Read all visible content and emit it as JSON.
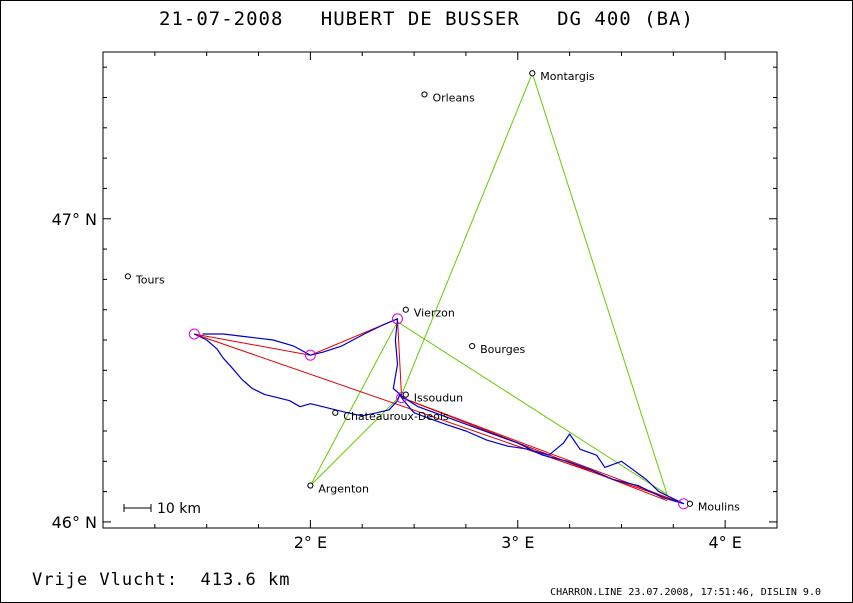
{
  "title": "21-07-2008   HUBERT DE BUSSER   DG 400 (BA)",
  "footer": {
    "distance_label": "Vrije Vlucht:",
    "distance_value": "413.6 km",
    "info": "CHARRON.LINE 23.07.2008, 17:51:46, DISLIN 9.0"
  },
  "scale_bar_label": "10 km",
  "map": {
    "lon_range": [
      1.0,
      4.25
    ],
    "lat_range": [
      45.98,
      47.55
    ],
    "x_ticks": [
      {
        "lon": 2,
        "label": "2° E"
      },
      {
        "lon": 3,
        "label": "3° E"
      },
      {
        "lon": 4,
        "label": "4° E"
      }
    ],
    "y_ticks": [
      {
        "lat": 47,
        "label": "47° N"
      },
      {
        "lat": 46,
        "label": "46° N"
      }
    ],
    "cities": [
      {
        "name": "Montargis",
        "lon": 3.07,
        "lat": 47.48
      },
      {
        "name": "Orleans",
        "lon": 2.55,
        "lat": 47.41
      },
      {
        "name": "Tours",
        "lon": 1.12,
        "lat": 46.81
      },
      {
        "name": "Vierzon",
        "lon": 2.46,
        "lat": 46.7
      },
      {
        "name": "Bourges",
        "lon": 2.78,
        "lat": 46.58
      },
      {
        "name": "Issoudun",
        "lon": 2.46,
        "lat": 46.42
      },
      {
        "name": "Chateauroux-Deols",
        "lon": 2.12,
        "lat": 46.36
      },
      {
        "name": "Argenton",
        "lon": 2.0,
        "lat": 46.12
      },
      {
        "name": "Moulins",
        "lon": 3.83,
        "lat": 46.06
      }
    ],
    "turnpoints": [
      {
        "lon": 1.44,
        "lat": 46.62
      },
      {
        "lon": 2.0,
        "lat": 46.55
      },
      {
        "lon": 2.42,
        "lat": 46.67
      },
      {
        "lon": 2.44,
        "lat": 46.41
      },
      {
        "lon": 3.8,
        "lat": 46.06
      }
    ],
    "triangle": [
      {
        "lon": 3.07,
        "lat": 47.48
      },
      {
        "lon": 3.72,
        "lat": 46.09
      },
      {
        "lon": 2.42,
        "lat": 46.66
      },
      {
        "lon": 2.0,
        "lat": 46.12
      },
      {
        "lon": 2.44,
        "lat": 46.42
      }
    ],
    "task_route": [
      {
        "lon": 1.44,
        "lat": 46.62
      },
      {
        "lon": 2.0,
        "lat": 46.55
      },
      {
        "lon": 2.42,
        "lat": 46.67
      },
      {
        "lon": 2.44,
        "lat": 46.41
      },
      {
        "lon": 3.8,
        "lat": 46.06
      },
      {
        "lon": 1.44,
        "lat": 46.62
      }
    ],
    "task_route_2": [
      {
        "lon": 2.44,
        "lat": 46.41
      },
      {
        "lon": 3.72,
        "lat": 46.07
      }
    ],
    "flight_track": [
      {
        "lon": 1.44,
        "lat": 46.62
      },
      {
        "lon": 1.5,
        "lat": 46.6
      },
      {
        "lon": 1.55,
        "lat": 46.57
      },
      {
        "lon": 1.58,
        "lat": 46.54
      },
      {
        "lon": 1.62,
        "lat": 46.51
      },
      {
        "lon": 1.67,
        "lat": 46.47
      },
      {
        "lon": 1.72,
        "lat": 46.44
      },
      {
        "lon": 1.78,
        "lat": 46.42
      },
      {
        "lon": 1.84,
        "lat": 46.41
      },
      {
        "lon": 1.9,
        "lat": 46.4
      },
      {
        "lon": 1.95,
        "lat": 46.38
      },
      {
        "lon": 2.0,
        "lat": 46.39
      },
      {
        "lon": 2.06,
        "lat": 46.38
      },
      {
        "lon": 2.12,
        "lat": 46.37
      },
      {
        "lon": 2.18,
        "lat": 46.36
      },
      {
        "lon": 2.25,
        "lat": 46.35
      },
      {
        "lon": 2.32,
        "lat": 46.36
      },
      {
        "lon": 2.38,
        "lat": 46.37
      },
      {
        "lon": 2.42,
        "lat": 46.4
      },
      {
        "lon": 2.43,
        "lat": 46.42
      },
      {
        "lon": 2.45,
        "lat": 46.4
      },
      {
        "lon": 2.5,
        "lat": 46.36
      },
      {
        "lon": 2.58,
        "lat": 46.34
      },
      {
        "lon": 2.66,
        "lat": 46.32
      },
      {
        "lon": 2.75,
        "lat": 46.3
      },
      {
        "lon": 2.85,
        "lat": 46.27
      },
      {
        "lon": 2.95,
        "lat": 46.25
      },
      {
        "lon": 3.05,
        "lat": 46.24
      },
      {
        "lon": 3.15,
        "lat": 46.22
      },
      {
        "lon": 3.22,
        "lat": 46.26
      },
      {
        "lon": 3.25,
        "lat": 46.29
      },
      {
        "lon": 3.3,
        "lat": 46.24
      },
      {
        "lon": 3.38,
        "lat": 46.22
      },
      {
        "lon": 3.42,
        "lat": 46.18
      },
      {
        "lon": 3.5,
        "lat": 46.2
      },
      {
        "lon": 3.56,
        "lat": 46.17
      },
      {
        "lon": 3.62,
        "lat": 46.14
      },
      {
        "lon": 3.68,
        "lat": 46.1
      },
      {
        "lon": 3.74,
        "lat": 46.08
      },
      {
        "lon": 3.8,
        "lat": 46.06
      },
      {
        "lon": 3.7,
        "lat": 46.08
      },
      {
        "lon": 3.58,
        "lat": 46.12
      },
      {
        "lon": 3.46,
        "lat": 46.14
      },
      {
        "lon": 3.36,
        "lat": 46.17
      },
      {
        "lon": 3.24,
        "lat": 46.2
      },
      {
        "lon": 3.12,
        "lat": 46.22
      },
      {
        "lon": 3.0,
        "lat": 46.26
      },
      {
        "lon": 2.88,
        "lat": 46.29
      },
      {
        "lon": 2.76,
        "lat": 46.32
      },
      {
        "lon": 2.64,
        "lat": 46.35
      },
      {
        "lon": 2.52,
        "lat": 46.38
      },
      {
        "lon": 2.45,
        "lat": 46.41
      },
      {
        "lon": 2.4,
        "lat": 46.44
      },
      {
        "lon": 2.42,
        "lat": 46.52
      },
      {
        "lon": 2.41,
        "lat": 46.6
      },
      {
        "lon": 2.42,
        "lat": 46.67
      },
      {
        "lon": 2.35,
        "lat": 46.65
      },
      {
        "lon": 2.26,
        "lat": 46.62
      },
      {
        "lon": 2.15,
        "lat": 46.58
      },
      {
        "lon": 2.06,
        "lat": 46.56
      },
      {
        "lon": 2.0,
        "lat": 46.55
      },
      {
        "lon": 1.92,
        "lat": 46.58
      },
      {
        "lon": 1.82,
        "lat": 46.6
      },
      {
        "lon": 1.7,
        "lat": 46.61
      },
      {
        "lon": 1.58,
        "lat": 46.62
      },
      {
        "lon": 1.48,
        "lat": 46.62
      }
    ]
  },
  "colors": {
    "triangle": "#66cc00",
    "route": "#e00000",
    "track": "#0000cc",
    "turnpoint": "#e000e0",
    "axis": "#000000"
  }
}
